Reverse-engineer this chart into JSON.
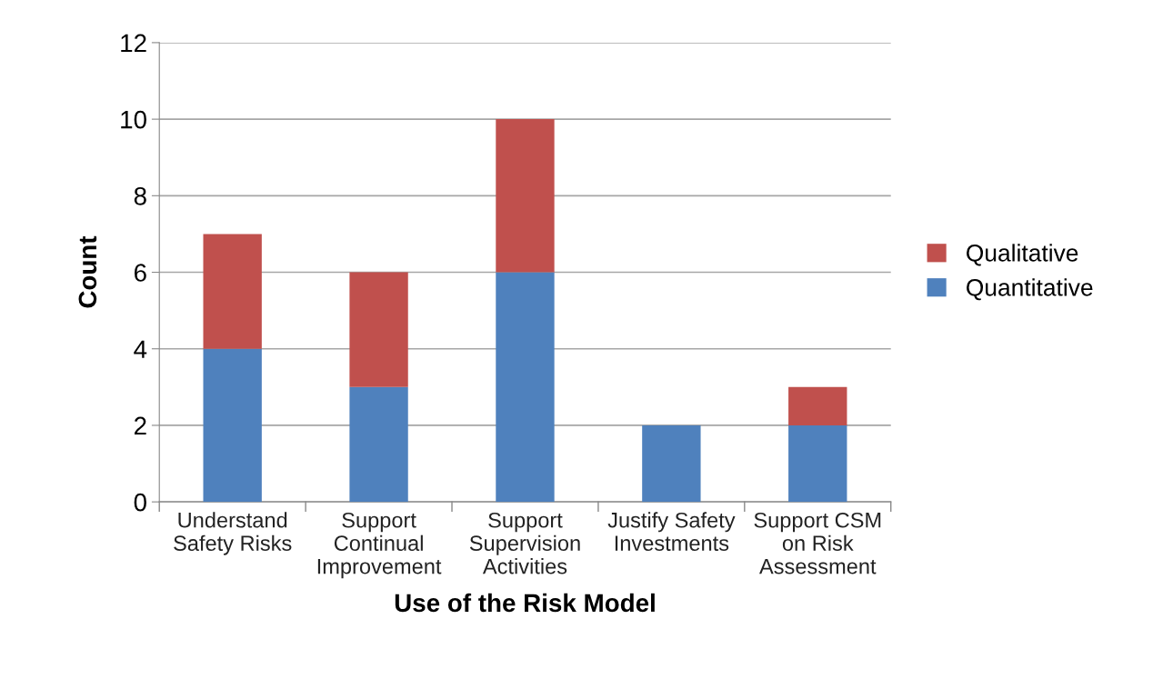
{
  "chart_data": {
    "type": "bar",
    "stacked": true,
    "xlabel": "Use of the Risk Model",
    "ylabel": "Count",
    "categories": [
      "Understand\nSafety Risks",
      "Support\nContinual\nImprovement",
      "Support\nSupervision\nActivities",
      "Justify Safety\nInvestments",
      "Support CSM\non Risk\nAssessment"
    ],
    "series": [
      {
        "name": "Quantitative",
        "color": "#4f81bd",
        "values": [
          4,
          3,
          6,
          2,
          2
        ]
      },
      {
        "name": "Qualitative",
        "color": "#c0504d",
        "values": [
          3,
          3,
          4,
          0,
          1
        ]
      }
    ],
    "ylim": [
      0,
      12
    ],
    "yticks": [
      0,
      2,
      4,
      6,
      8,
      10,
      12
    ],
    "grid": "y",
    "legend": "right"
  }
}
